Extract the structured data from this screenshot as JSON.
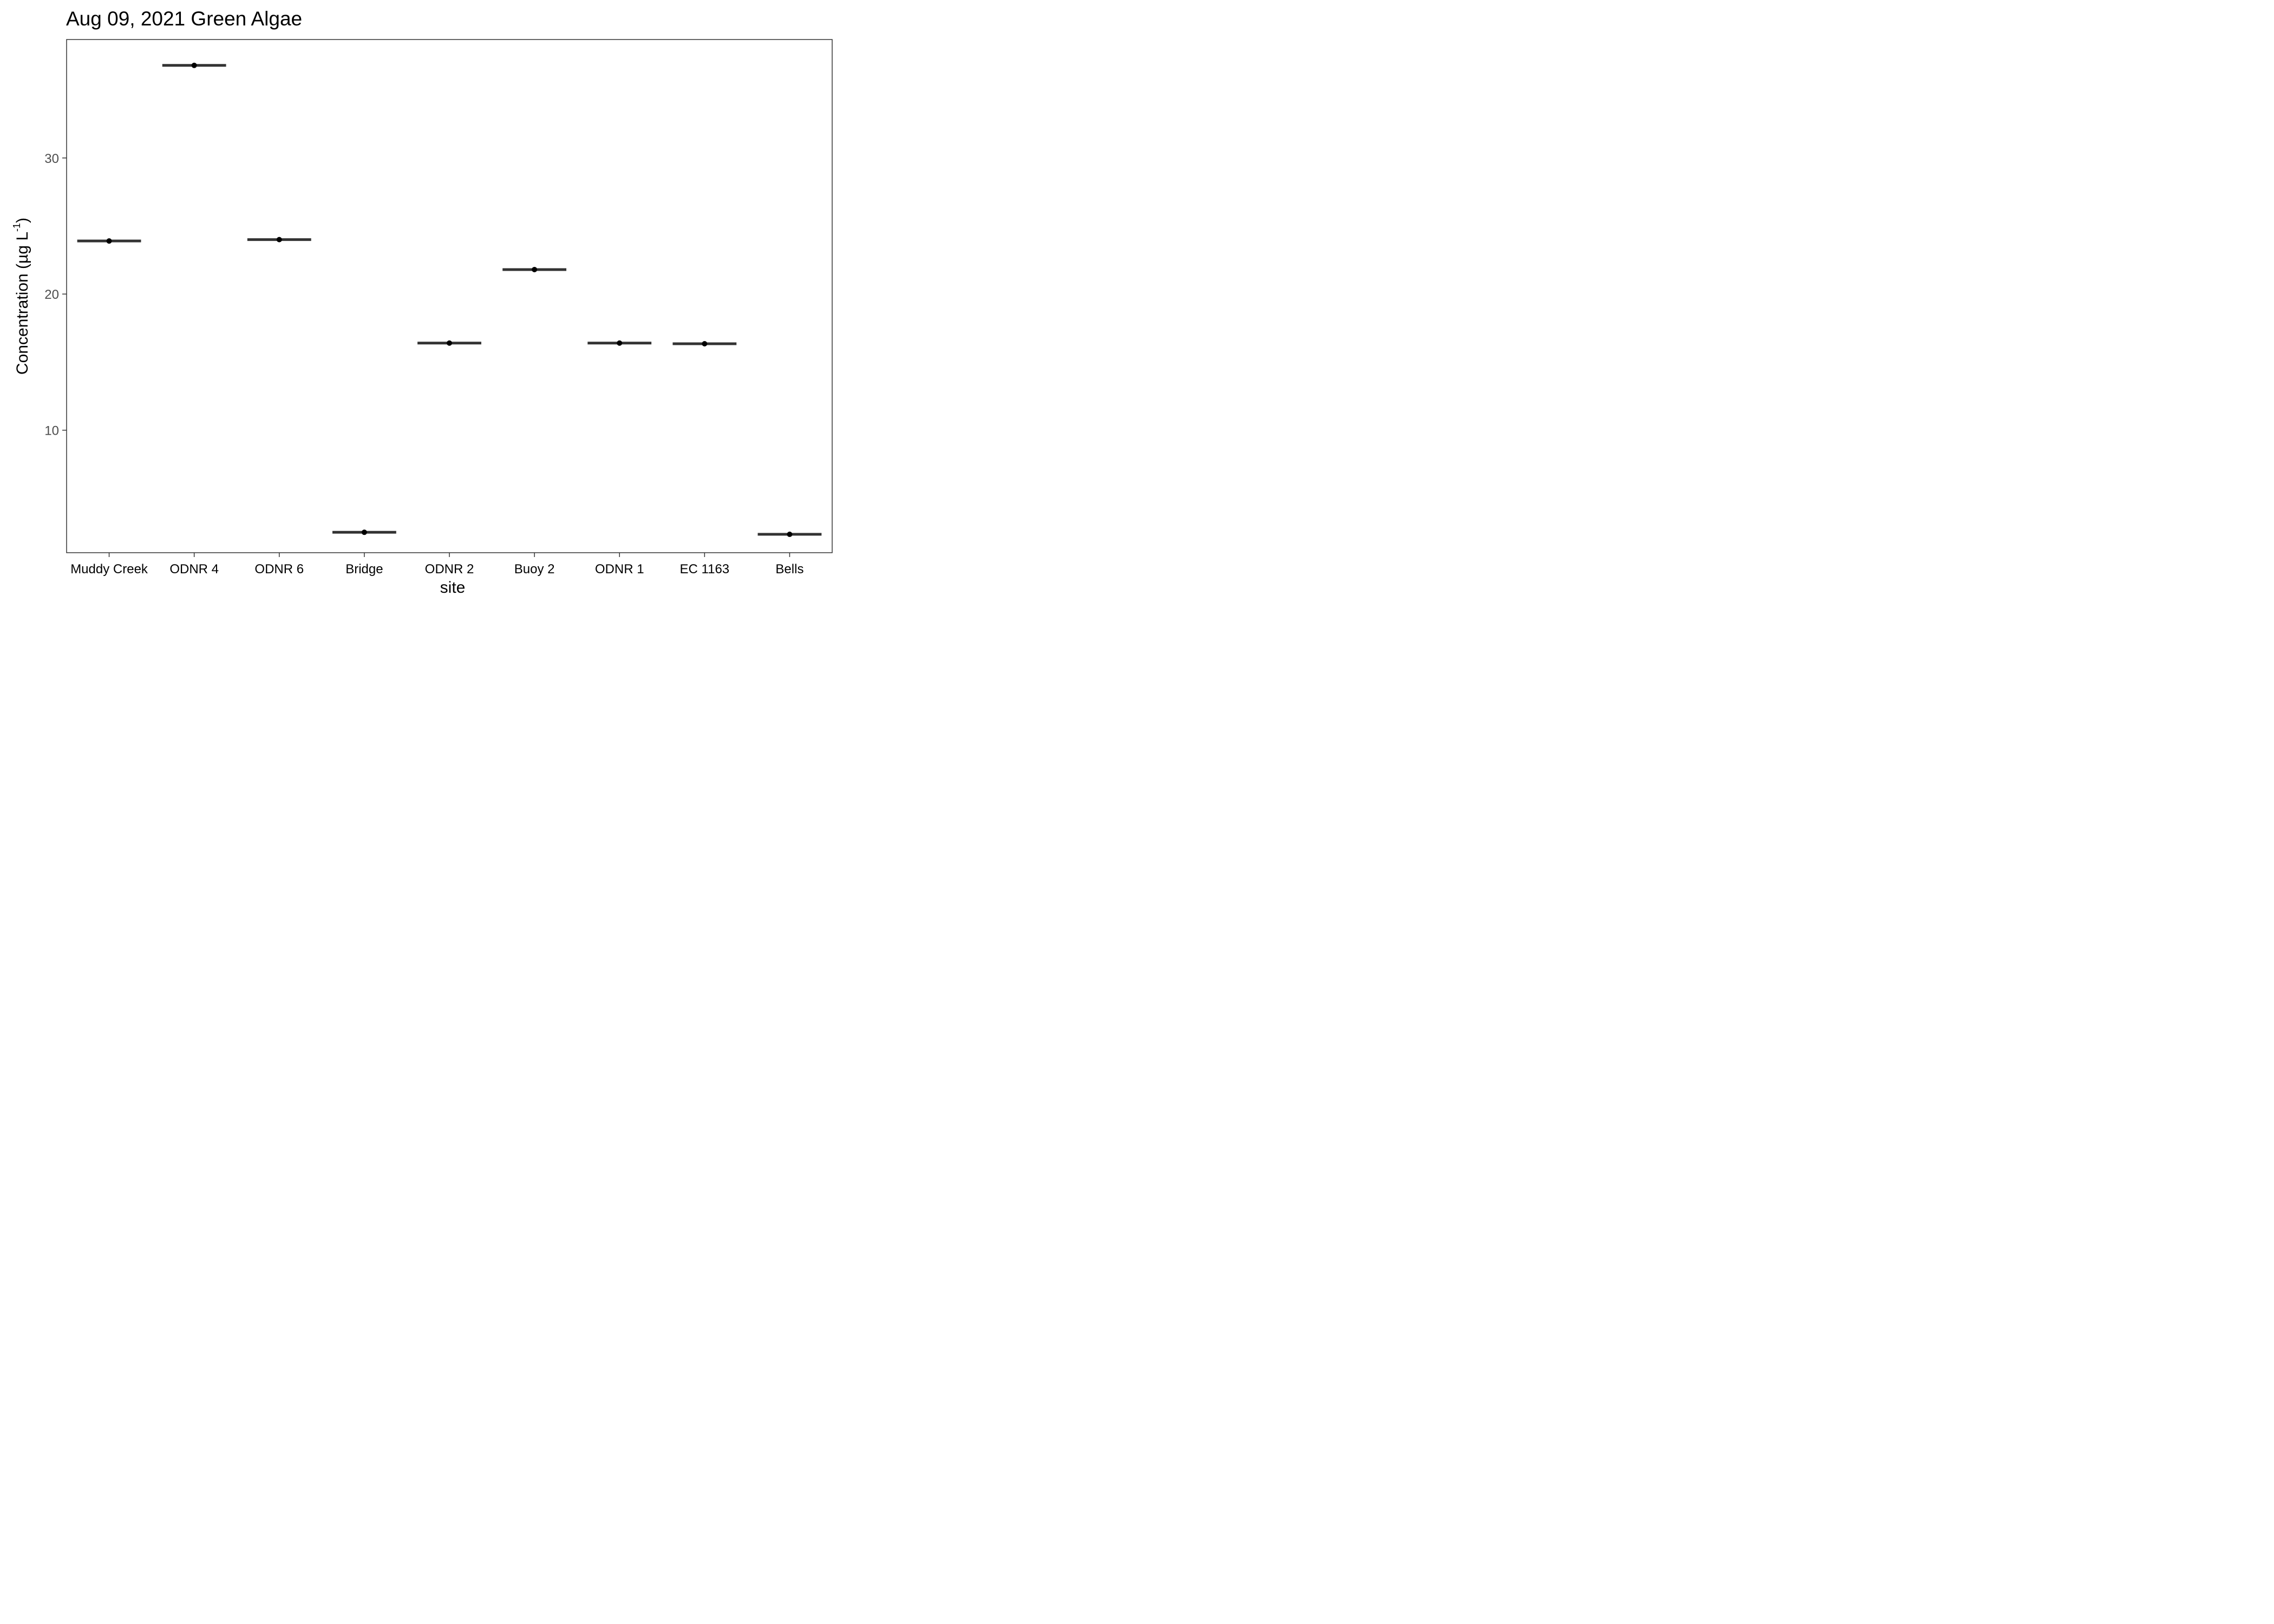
{
  "chart_data": {
    "type": "scatter",
    "title": "Aug 09, 2021 Green Algae",
    "xlabel": "site",
    "ylabel": {
      "main": "Concentration (µg L",
      "superscript": "-1",
      "close": ")"
    },
    "categories": [
      "Muddy Creek",
      "ODNR 4",
      "ODNR 6",
      "Bridge",
      "ODNR 2",
      "Buoy 2",
      "ODNR 1",
      "EC 1163",
      "Bells"
    ],
    "values": [
      23.9,
      36.8,
      24.0,
      2.5,
      16.4,
      21.8,
      16.4,
      16.35,
      2.35
    ],
    "yticks": [
      10,
      20,
      30
    ],
    "ylim": [
      1.0,
      38.7
    ],
    "grid": false,
    "legend": "none",
    "colors": {
      "point": "#000000",
      "crossbar": "#333333",
      "panel_border": "#333333",
      "tick": "#333333"
    }
  }
}
